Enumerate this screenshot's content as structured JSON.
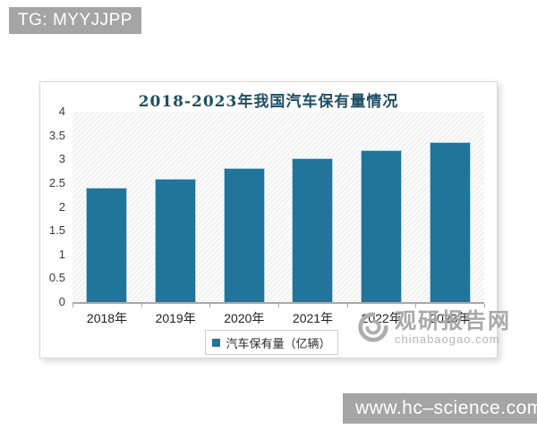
{
  "badges": {
    "top_left": "TG: MYYJJPP",
    "bottom_right": "www.hc–science.com"
  },
  "chart": {
    "title": "2018-2023年我国汽车保有量情况",
    "legend_label": "汽车保有量（亿辆）",
    "watermark": {
      "name": "观研报告网",
      "domain": "chinabaogao.com"
    }
  },
  "chart_data": {
    "type": "bar",
    "title": "2018-2023年我国汽车保有量情况",
    "categories": [
      "2018年",
      "2019年",
      "2020年",
      "2021年",
      "2022年",
      "2023年"
    ],
    "values": [
      2.4,
      2.6,
      2.81,
      3.02,
      3.19,
      3.36
    ],
    "series_name": "汽车保有量（亿辆）",
    "xlabel": "",
    "ylabel": "",
    "ylim": [
      0,
      4
    ],
    "ytick_step": 0.5,
    "yticks": [
      "0",
      "0.5",
      "1",
      "1.5",
      "2",
      "2.5",
      "3",
      "3.5",
      "4"
    ],
    "grid": false,
    "legend_position": "bottom",
    "bar_color": "#21749a",
    "bar_outline_color": "#aed4e6",
    "plot_hatch": true
  },
  "colors": {
    "badge_background": "#a5a5a5",
    "badge_text": "#ffffff",
    "title_text": "#1d4e63",
    "watermark_gray": "#a8a8a8",
    "axis_line": "#a9a9a9"
  }
}
